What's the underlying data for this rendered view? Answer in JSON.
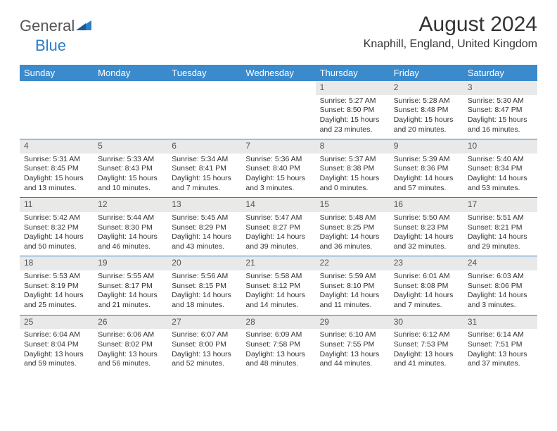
{
  "logo": {
    "text1": "General",
    "text2": "Blue"
  },
  "header": {
    "title": "August 2024",
    "location": "Knaphill, England, United Kingdom"
  },
  "dayNames": [
    "Sunday",
    "Monday",
    "Tuesday",
    "Wednesday",
    "Thursday",
    "Friday",
    "Saturday"
  ],
  "colors": {
    "headerBg": "#3b8acc",
    "headerText": "#ffffff",
    "dayNumBg": "#e9e9e9",
    "borderColor": "#2d7dc8",
    "logoBlue": "#2d7dc8",
    "textColor": "#333333"
  },
  "weeks": [
    [
      null,
      null,
      null,
      null,
      {
        "num": "1",
        "sunrise": "Sunrise: 5:27 AM",
        "sunset": "Sunset: 8:50 PM",
        "daylight": "Daylight: 15 hours and 23 minutes."
      },
      {
        "num": "2",
        "sunrise": "Sunrise: 5:28 AM",
        "sunset": "Sunset: 8:48 PM",
        "daylight": "Daylight: 15 hours and 20 minutes."
      },
      {
        "num": "3",
        "sunrise": "Sunrise: 5:30 AM",
        "sunset": "Sunset: 8:47 PM",
        "daylight": "Daylight: 15 hours and 16 minutes."
      }
    ],
    [
      {
        "num": "4",
        "sunrise": "Sunrise: 5:31 AM",
        "sunset": "Sunset: 8:45 PM",
        "daylight": "Daylight: 15 hours and 13 minutes."
      },
      {
        "num": "5",
        "sunrise": "Sunrise: 5:33 AM",
        "sunset": "Sunset: 8:43 PM",
        "daylight": "Daylight: 15 hours and 10 minutes."
      },
      {
        "num": "6",
        "sunrise": "Sunrise: 5:34 AM",
        "sunset": "Sunset: 8:41 PM",
        "daylight": "Daylight: 15 hours and 7 minutes."
      },
      {
        "num": "7",
        "sunrise": "Sunrise: 5:36 AM",
        "sunset": "Sunset: 8:40 PM",
        "daylight": "Daylight: 15 hours and 3 minutes."
      },
      {
        "num": "8",
        "sunrise": "Sunrise: 5:37 AM",
        "sunset": "Sunset: 8:38 PM",
        "daylight": "Daylight: 15 hours and 0 minutes."
      },
      {
        "num": "9",
        "sunrise": "Sunrise: 5:39 AM",
        "sunset": "Sunset: 8:36 PM",
        "daylight": "Daylight: 14 hours and 57 minutes."
      },
      {
        "num": "10",
        "sunrise": "Sunrise: 5:40 AM",
        "sunset": "Sunset: 8:34 PM",
        "daylight": "Daylight: 14 hours and 53 minutes."
      }
    ],
    [
      {
        "num": "11",
        "sunrise": "Sunrise: 5:42 AM",
        "sunset": "Sunset: 8:32 PM",
        "daylight": "Daylight: 14 hours and 50 minutes."
      },
      {
        "num": "12",
        "sunrise": "Sunrise: 5:44 AM",
        "sunset": "Sunset: 8:30 PM",
        "daylight": "Daylight: 14 hours and 46 minutes."
      },
      {
        "num": "13",
        "sunrise": "Sunrise: 5:45 AM",
        "sunset": "Sunset: 8:29 PM",
        "daylight": "Daylight: 14 hours and 43 minutes."
      },
      {
        "num": "14",
        "sunrise": "Sunrise: 5:47 AM",
        "sunset": "Sunset: 8:27 PM",
        "daylight": "Daylight: 14 hours and 39 minutes."
      },
      {
        "num": "15",
        "sunrise": "Sunrise: 5:48 AM",
        "sunset": "Sunset: 8:25 PM",
        "daylight": "Daylight: 14 hours and 36 minutes."
      },
      {
        "num": "16",
        "sunrise": "Sunrise: 5:50 AM",
        "sunset": "Sunset: 8:23 PM",
        "daylight": "Daylight: 14 hours and 32 minutes."
      },
      {
        "num": "17",
        "sunrise": "Sunrise: 5:51 AM",
        "sunset": "Sunset: 8:21 PM",
        "daylight": "Daylight: 14 hours and 29 minutes."
      }
    ],
    [
      {
        "num": "18",
        "sunrise": "Sunrise: 5:53 AM",
        "sunset": "Sunset: 8:19 PM",
        "daylight": "Daylight: 14 hours and 25 minutes."
      },
      {
        "num": "19",
        "sunrise": "Sunrise: 5:55 AM",
        "sunset": "Sunset: 8:17 PM",
        "daylight": "Daylight: 14 hours and 21 minutes."
      },
      {
        "num": "20",
        "sunrise": "Sunrise: 5:56 AM",
        "sunset": "Sunset: 8:15 PM",
        "daylight": "Daylight: 14 hours and 18 minutes."
      },
      {
        "num": "21",
        "sunrise": "Sunrise: 5:58 AM",
        "sunset": "Sunset: 8:12 PM",
        "daylight": "Daylight: 14 hours and 14 minutes."
      },
      {
        "num": "22",
        "sunrise": "Sunrise: 5:59 AM",
        "sunset": "Sunset: 8:10 PM",
        "daylight": "Daylight: 14 hours and 11 minutes."
      },
      {
        "num": "23",
        "sunrise": "Sunrise: 6:01 AM",
        "sunset": "Sunset: 8:08 PM",
        "daylight": "Daylight: 14 hours and 7 minutes."
      },
      {
        "num": "24",
        "sunrise": "Sunrise: 6:03 AM",
        "sunset": "Sunset: 8:06 PM",
        "daylight": "Daylight: 14 hours and 3 minutes."
      }
    ],
    [
      {
        "num": "25",
        "sunrise": "Sunrise: 6:04 AM",
        "sunset": "Sunset: 8:04 PM",
        "daylight": "Daylight: 13 hours and 59 minutes."
      },
      {
        "num": "26",
        "sunrise": "Sunrise: 6:06 AM",
        "sunset": "Sunset: 8:02 PM",
        "daylight": "Daylight: 13 hours and 56 minutes."
      },
      {
        "num": "27",
        "sunrise": "Sunrise: 6:07 AM",
        "sunset": "Sunset: 8:00 PM",
        "daylight": "Daylight: 13 hours and 52 minutes."
      },
      {
        "num": "28",
        "sunrise": "Sunrise: 6:09 AM",
        "sunset": "Sunset: 7:58 PM",
        "daylight": "Daylight: 13 hours and 48 minutes."
      },
      {
        "num": "29",
        "sunrise": "Sunrise: 6:10 AM",
        "sunset": "Sunset: 7:55 PM",
        "daylight": "Daylight: 13 hours and 44 minutes."
      },
      {
        "num": "30",
        "sunrise": "Sunrise: 6:12 AM",
        "sunset": "Sunset: 7:53 PM",
        "daylight": "Daylight: 13 hours and 41 minutes."
      },
      {
        "num": "31",
        "sunrise": "Sunrise: 6:14 AM",
        "sunset": "Sunset: 7:51 PM",
        "daylight": "Daylight: 13 hours and 37 minutes."
      }
    ]
  ]
}
